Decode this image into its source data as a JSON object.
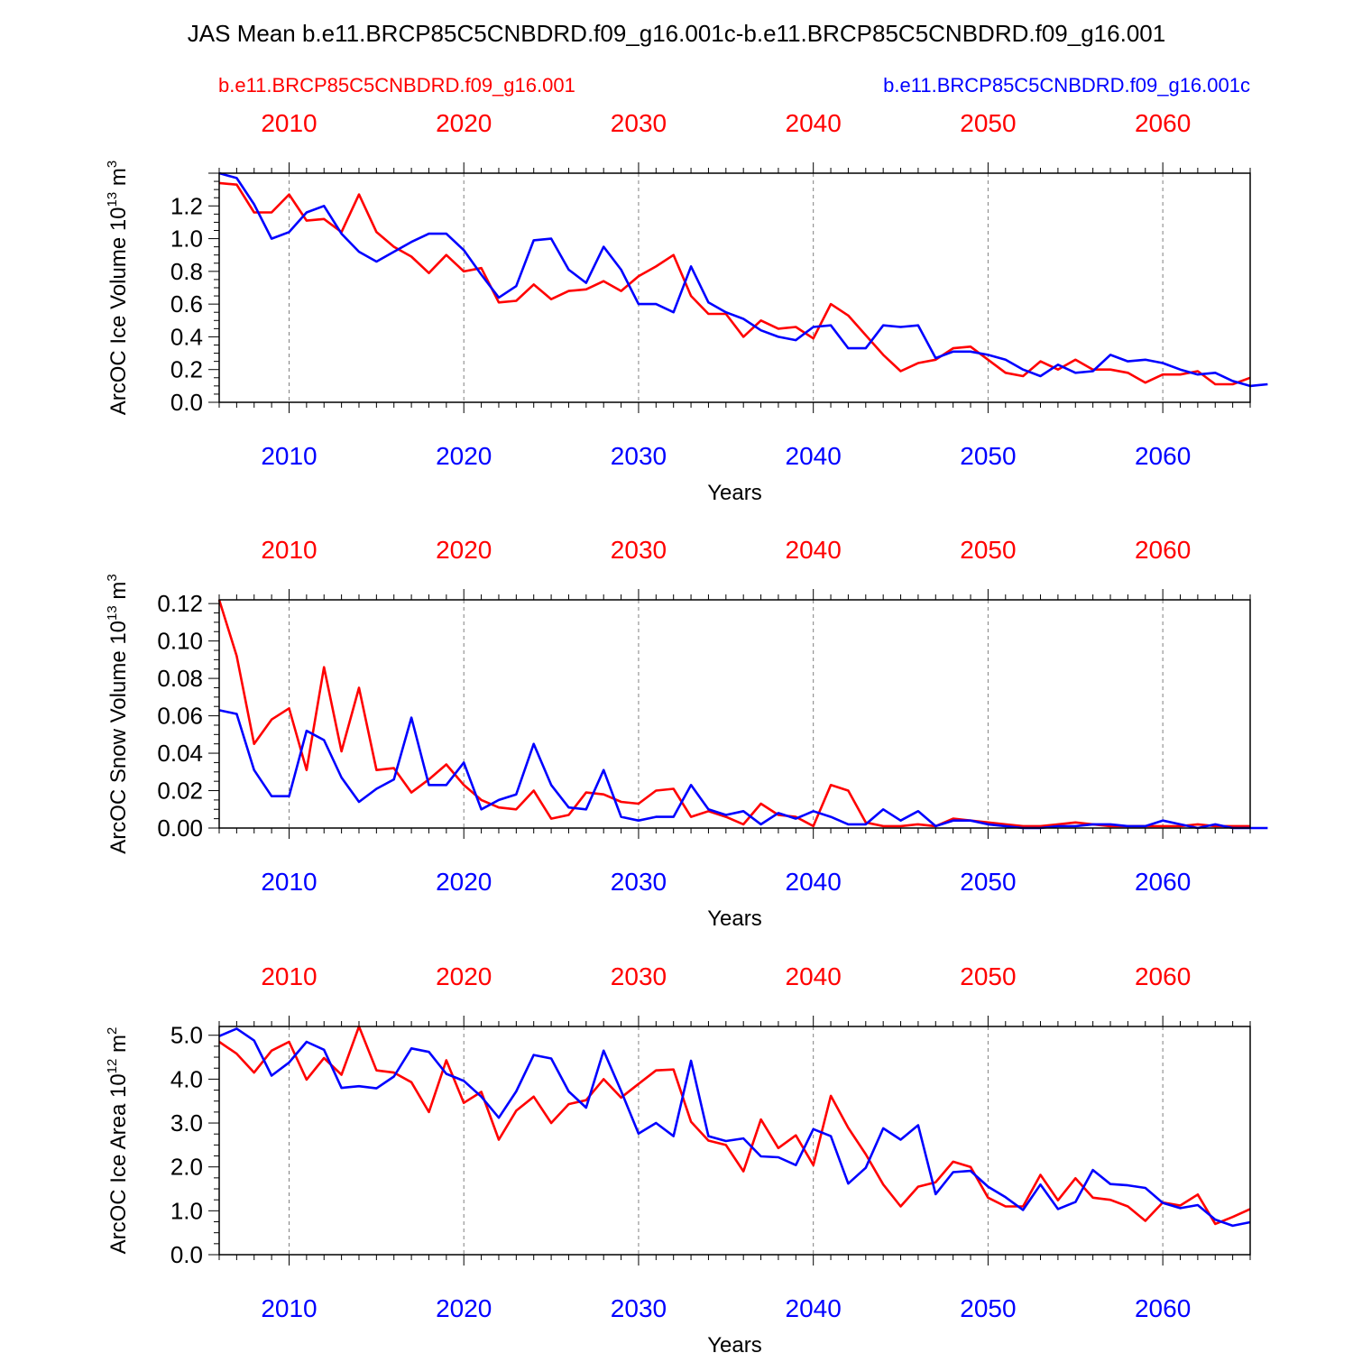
{
  "title": "JAS Mean b.e11.BRCP85C5CNBDRD.f09_g16.001c-b.e11.BRCP85C5CNBDRD.f09_g16.001",
  "legend": {
    "left": {
      "label": "b.e11.BRCP85C5CNBDRD.f09_g16.001",
      "color": "#ff0000"
    },
    "right": {
      "label": "b.e11.BRCP85C5CNBDRD.f09_g16.001c",
      "color": "#0000ff"
    }
  },
  "colors": {
    "red": "#ff0000",
    "blue": "#0000ff",
    "axis": "#000000",
    "grid": "#808080"
  },
  "chart_data": [
    {
      "type": "line",
      "ylabel": "ArcOC Ice Volume 10",
      "ylabel_sup": "13",
      "ylabel_unit": " m",
      "ylabel_unit_sup": "3",
      "xlabel": "Years",
      "xlim": [
        2006,
        2065
      ],
      "ylim": [
        0,
        1.4
      ],
      "yticks": [
        "0.0",
        "0.2",
        "0.4",
        "0.6",
        "0.8",
        "1.0",
        "1.2"
      ],
      "ytick_values": [
        0,
        0.2,
        0.4,
        0.6,
        0.8,
        1.0,
        1.2
      ],
      "xticks": [
        "2010",
        "2020",
        "2030",
        "2040",
        "2050",
        "2060"
      ],
      "xtick_values": [
        2010,
        2020,
        2030,
        2040,
        2050,
        2060
      ],
      "series": [
        {
          "name": "b.e11.BRCP85C5CNBDRD.f09_g16.001",
          "color": "#ff0000",
          "start_year": 2006,
          "values": [
            1.34,
            1.33,
            1.16,
            1.16,
            1.27,
            1.11,
            1.12,
            1.04,
            1.27,
            1.04,
            0.95,
            0.89,
            0.79,
            0.9,
            0.8,
            0.82,
            0.61,
            0.62,
            0.72,
            0.63,
            0.68,
            0.69,
            0.74,
            0.68,
            0.77,
            0.83,
            0.9,
            0.65,
            0.54,
            0.54,
            0.4,
            0.5,
            0.45,
            0.46,
            0.39,
            0.6,
            0.53,
            0.41,
            0.29,
            0.19,
            0.24,
            0.26,
            0.33,
            0.34,
            0.26,
            0.18,
            0.16,
            0.25,
            0.2,
            0.26,
            0.2,
            0.2,
            0.18,
            0.12,
            0.17,
            0.17,
            0.19,
            0.11,
            0.11,
            0.15
          ]
        },
        {
          "name": "b.e11.BRCP85C5CNBDRD.f09_g16.001c",
          "color": "#0000ff",
          "start_year": 2006,
          "values": [
            1.4,
            1.37,
            1.21,
            1.0,
            1.04,
            1.16,
            1.2,
            1.03,
            0.92,
            0.86,
            0.92,
            0.98,
            1.03,
            1.03,
            0.93,
            0.78,
            0.64,
            0.71,
            0.99,
            1.0,
            0.81,
            0.73,
            0.95,
            0.81,
            0.6,
            0.6,
            0.55,
            0.83,
            0.61,
            0.55,
            0.51,
            0.44,
            0.4,
            0.38,
            0.46,
            0.47,
            0.33,
            0.33,
            0.47,
            0.46,
            0.47,
            0.27,
            0.31,
            0.31,
            0.29,
            0.26,
            0.2,
            0.16,
            0.23,
            0.18,
            0.19,
            0.29,
            0.25,
            0.26,
            0.24,
            0.2,
            0.17,
            0.18,
            0.13,
            0.1,
            0.11
          ]
        }
      ]
    },
    {
      "type": "line",
      "ylabel": "ArcOC Snow Volume 10",
      "ylabel_sup": "13",
      "ylabel_unit": " m",
      "ylabel_unit_sup": "3",
      "xlabel": "Years",
      "xlim": [
        2006,
        2065
      ],
      "ylim": [
        0,
        0.122
      ],
      "yticks": [
        "0.00",
        "0.02",
        "0.04",
        "0.06",
        "0.08",
        "0.10",
        "0.12"
      ],
      "ytick_values": [
        0,
        0.02,
        0.04,
        0.06,
        0.08,
        0.1,
        0.12
      ],
      "xticks": [
        "2010",
        "2020",
        "2030",
        "2040",
        "2050",
        "2060"
      ],
      "xtick_values": [
        2010,
        2020,
        2030,
        2040,
        2050,
        2060
      ],
      "series": [
        {
          "name": "b.e11.BRCP85C5CNBDRD.f09_g16.001",
          "color": "#ff0000",
          "start_year": 2006,
          "values": [
            0.122,
            0.092,
            0.045,
            0.058,
            0.064,
            0.031,
            0.086,
            0.041,
            0.075,
            0.031,
            0.032,
            0.019,
            0.026,
            0.034,
            0.023,
            0.015,
            0.011,
            0.01,
            0.02,
            0.005,
            0.007,
            0.019,
            0.018,
            0.014,
            0.013,
            0.02,
            0.021,
            0.006,
            0.009,
            0.006,
            0.002,
            0.013,
            0.007,
            0.006,
            0.001,
            0.023,
            0.02,
            0.003,
            0.001,
            0.001,
            0.002,
            0.001,
            0.005,
            0.004,
            0.003,
            0.002,
            0.001,
            0.001,
            0.002,
            0.003,
            0.002,
            0.001,
            0.001,
            0.001,
            0.001,
            0.001,
            0.002,
            0.001,
            0.001,
            0.001
          ]
        },
        {
          "name": "b.e11.BRCP85C5CNBDRD.f09_g16.001c",
          "color": "#0000ff",
          "start_year": 2006,
          "values": [
            0.063,
            0.061,
            0.031,
            0.017,
            0.017,
            0.052,
            0.047,
            0.027,
            0.014,
            0.021,
            0.026,
            0.059,
            0.023,
            0.023,
            0.035,
            0.01,
            0.015,
            0.018,
            0.045,
            0.023,
            0.011,
            0.01,
            0.031,
            0.006,
            0.004,
            0.006,
            0.006,
            0.023,
            0.01,
            0.007,
            0.009,
            0.002,
            0.008,
            0.005,
            0.009,
            0.006,
            0.002,
            0.002,
            0.01,
            0.004,
            0.009,
            0.001,
            0.004,
            0.004,
            0.002,
            0.001,
            0.0,
            0.0,
            0.001,
            0.001,
            0.002,
            0.002,
            0.001,
            0.001,
            0.004,
            0.002,
            0.0,
            0.002,
            0.0,
            0.0,
            0.0
          ]
        }
      ]
    },
    {
      "type": "line",
      "ylabel": "ArcOC Ice Area 10",
      "ylabel_sup": "12",
      "ylabel_unit": " m",
      "ylabel_unit_sup": "2",
      "xlabel": "Years",
      "xlim": [
        2006,
        2065
      ],
      "ylim": [
        0,
        5.2
      ],
      "yticks": [
        "0.0",
        "1.0",
        "2.0",
        "3.0",
        "4.0",
        "5.0"
      ],
      "ytick_values": [
        0,
        1,
        2,
        3,
        4,
        5
      ],
      "xticks": [
        "2010",
        "2020",
        "2030",
        "2040",
        "2050",
        "2060"
      ],
      "xtick_values": [
        2010,
        2020,
        2030,
        2040,
        2050,
        2060
      ],
      "series": [
        {
          "name": "b.e11.BRCP85C5CNBDRD.f09_g16.001",
          "color": "#ff0000",
          "start_year": 2006,
          "values": [
            4.85,
            4.58,
            4.15,
            4.65,
            4.85,
            3.99,
            4.48,
            4.1,
            5.2,
            4.2,
            4.15,
            3.93,
            3.25,
            4.43,
            3.46,
            3.71,
            2.62,
            3.28,
            3.6,
            3.0,
            3.43,
            3.52,
            4.0,
            3.58,
            3.89,
            4.2,
            4.22,
            3.03,
            2.6,
            2.5,
            1.9,
            3.08,
            2.43,
            2.72,
            2.04,
            3.62,
            2.89,
            2.29,
            1.6,
            1.1,
            1.55,
            1.65,
            2.12,
            2.0,
            1.3,
            1.1,
            1.1,
            1.82,
            1.24,
            1.74,
            1.3,
            1.25,
            1.1,
            0.77,
            1.19,
            1.12,
            1.37,
            0.7,
            0.86,
            1.04
          ]
        },
        {
          "name": "b.e11.BRCP85C5CNBDRD.f09_g16.001c",
          "color": "#0000ff",
          "start_year": 2006,
          "values": [
            4.98,
            5.15,
            4.88,
            4.08,
            4.38,
            4.85,
            4.67,
            3.8,
            3.84,
            3.79,
            4.06,
            4.7,
            4.62,
            4.12,
            3.96,
            3.6,
            3.12,
            3.72,
            4.55,
            4.47,
            3.72,
            3.35,
            4.65,
            3.73,
            2.76,
            3.0,
            2.7,
            4.42,
            2.7,
            2.59,
            2.65,
            2.24,
            2.22,
            2.04,
            2.86,
            2.7,
            1.62,
            1.98,
            2.88,
            2.62,
            2.95,
            1.38,
            1.88,
            1.91,
            1.55,
            1.31,
            1.02,
            1.6,
            1.04,
            1.2,
            1.93,
            1.61,
            1.58,
            1.52,
            1.18,
            1.06,
            1.13,
            0.8,
            0.66,
            0.74
          ]
        }
      ]
    }
  ]
}
